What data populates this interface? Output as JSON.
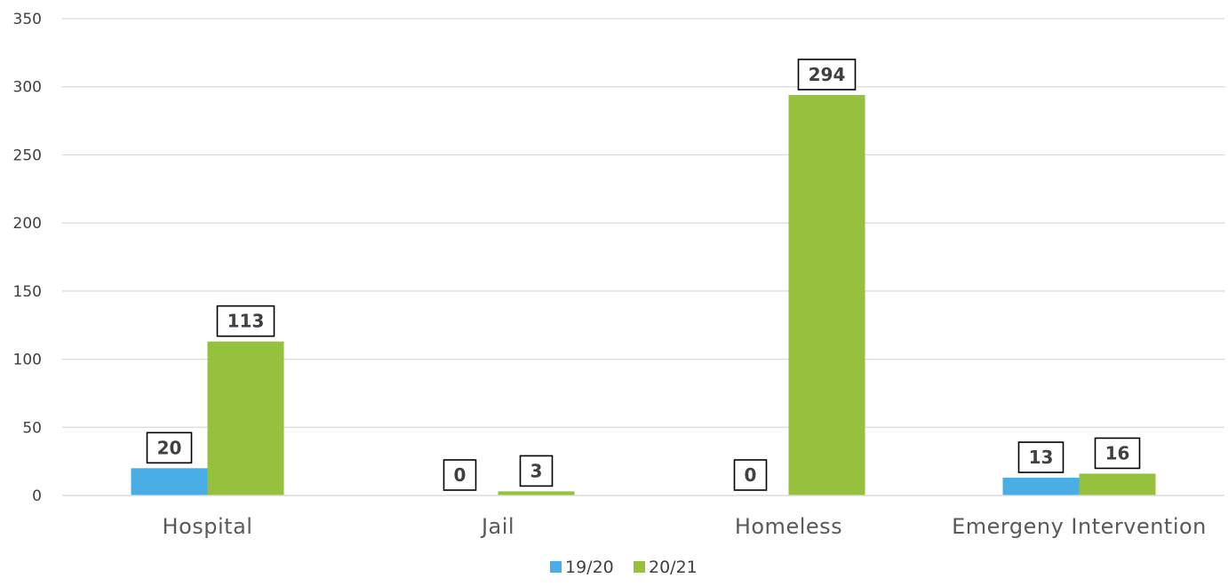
{
  "chart_data": {
    "type": "bar",
    "title": "",
    "xlabel": "",
    "ylabel": "",
    "categories": [
      "Hospital",
      "Jail",
      "Homeless",
      "Emergeny Intervention"
    ],
    "series": [
      {
        "name": "19/20",
        "values": [
          20,
          0,
          0,
          13
        ],
        "color": "#4aaee6"
      },
      {
        "name": "20/21",
        "values": [
          113,
          3,
          294,
          16
        ],
        "color": "#96c13d"
      }
    ],
    "ylim": [
      0,
      350
    ],
    "yticks": [
      0,
      50,
      100,
      150,
      200,
      250,
      300,
      350
    ],
    "grid": true,
    "legend_position": "bottom",
    "data_labels": true
  }
}
